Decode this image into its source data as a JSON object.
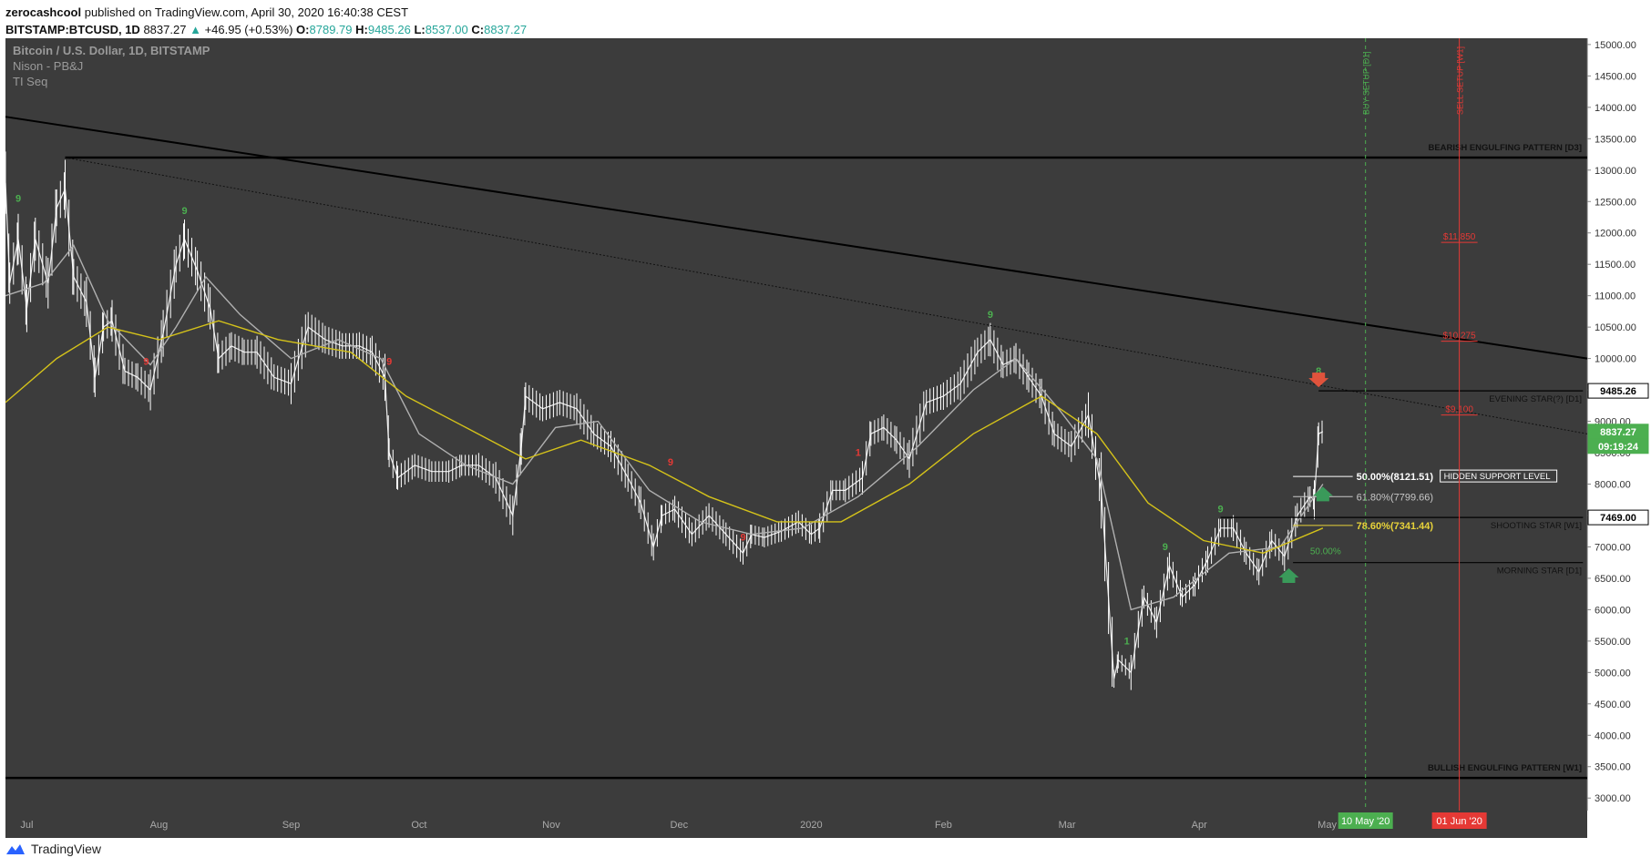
{
  "header": {
    "author": "zerocashcool",
    "published_text": "published on TradingView.com, April 30, 2020 16:40:38 CEST",
    "symbol": "BITSTAMP:BTCUSD, 1D",
    "last": "8837.27",
    "change_arrow": "▲",
    "change": "+46.95 (+0.53%)",
    "o_label": "O:",
    "o": "8789.79",
    "h_label": "H:",
    "h": "9485.26",
    "l_label": "L:",
    "l": "8537.00",
    "c_label": "C:",
    "c": "8837.27"
  },
  "legend": {
    "title": "Bitcoin / U.S. Dollar, 1D, BITSTAMP",
    "indicator1": "Nison - PB&J",
    "indicator2": "TI Seq"
  },
  "footer": {
    "brand": "TradingView",
    "logo_icon": "tradingview-logo-icon"
  },
  "colors": {
    "background": "#3c3c3c",
    "candle": "#ffffff",
    "ma_fast": "#b0b0b0",
    "ma_slow": "#d4c21a",
    "buy_green": "#4caf50",
    "sell_red": "#e53935",
    "trendline": "#000000"
  },
  "chart_data": {
    "type": "line",
    "ylim": [
      2800,
      15100
    ],
    "yticks": [
      "3000.00",
      "3500.00",
      "4000.00",
      "4500.00",
      "5000.00",
      "5500.00",
      "6000.00",
      "6500.00",
      "7000.00",
      "7500.00",
      "8000.00",
      "8500.00",
      "9000.00",
      "9500.00",
      "10000.00",
      "10500.00",
      "11000.00",
      "11500.00",
      "12000.00",
      "12500.00",
      "13000.00",
      "13500.00",
      "14000.00",
      "14500.00",
      "15000.00"
    ],
    "xticks": [
      {
        "label": "Jul",
        "date": "2019-07-01"
      },
      {
        "label": "Aug",
        "date": "2019-08-01"
      },
      {
        "label": "Sep",
        "date": "2019-09-01"
      },
      {
        "label": "Oct",
        "date": "2019-10-01"
      },
      {
        "label": "Nov",
        "date": "2019-11-01"
      },
      {
        "label": "Dec",
        "date": "2019-12-01"
      },
      {
        "label": "2020",
        "date": "2020-01-01"
      },
      {
        "label": "Feb",
        "date": "2020-02-01"
      },
      {
        "label": "Mar",
        "date": "2020-03-01"
      },
      {
        "label": "Apr",
        "date": "2020-04-01"
      },
      {
        "label": "May",
        "date": "2020-05-01"
      }
    ],
    "x_start": "2019-06-26",
    "x_end": "2020-07-01",
    "price_points": [
      [
        "2019-06-26",
        12800
      ],
      [
        "2019-06-27",
        11200
      ],
      [
        "2019-06-29",
        11900
      ],
      [
        "2019-07-01",
        10800
      ],
      [
        "2019-07-03",
        11900
      ],
      [
        "2019-07-06",
        11200
      ],
      [
        "2019-07-08",
        12400
      ],
      [
        "2019-07-10",
        12700
      ],
      [
        "2019-07-12",
        11300
      ],
      [
        "2019-07-15",
        10900
      ],
      [
        "2019-07-17",
        9700
      ],
      [
        "2019-07-19",
        10500
      ],
      [
        "2019-07-21",
        10600
      ],
      [
        "2019-07-24",
        9800
      ],
      [
        "2019-07-27",
        9700
      ],
      [
        "2019-07-30",
        9500
      ],
      [
        "2019-08-02",
        10400
      ],
      [
        "2019-08-05",
        11500
      ],
      [
        "2019-08-07",
        11900
      ],
      [
        "2019-08-10",
        11400
      ],
      [
        "2019-08-13",
        10800
      ],
      [
        "2019-08-15",
        10000
      ],
      [
        "2019-08-18",
        10200
      ],
      [
        "2019-08-21",
        10100
      ],
      [
        "2019-08-24",
        10100
      ],
      [
        "2019-08-28",
        9700
      ],
      [
        "2019-09-01",
        9600
      ],
      [
        "2019-09-05",
        10500
      ],
      [
        "2019-09-09",
        10300
      ],
      [
        "2019-09-13",
        10200
      ],
      [
        "2019-09-17",
        10200
      ],
      [
        "2019-09-20",
        10100
      ],
      [
        "2019-09-23",
        9700
      ],
      [
        "2019-09-24",
        8500
      ],
      [
        "2019-09-26",
        8100
      ],
      [
        "2019-09-30",
        8300
      ],
      [
        "2019-10-04",
        8200
      ],
      [
        "2019-10-08",
        8200
      ],
      [
        "2019-10-11",
        8300
      ],
      [
        "2019-10-15",
        8300
      ],
      [
        "2019-10-19",
        8100
      ],
      [
        "2019-10-23",
        7500
      ],
      [
        "2019-10-25",
        8600
      ],
      [
        "2019-10-26",
        9400
      ],
      [
        "2019-10-30",
        9200
      ],
      [
        "2019-11-03",
        9300
      ],
      [
        "2019-11-07",
        9200
      ],
      [
        "2019-11-11",
        8800
      ],
      [
        "2019-11-15",
        8600
      ],
      [
        "2019-11-19",
        8100
      ],
      [
        "2019-11-22",
        7700
      ],
      [
        "2019-11-25",
        7000
      ],
      [
        "2019-11-27",
        7500
      ],
      [
        "2019-11-30",
        7600
      ],
      [
        "2019-12-04",
        7200
      ],
      [
        "2019-12-08",
        7500
      ],
      [
        "2019-12-12",
        7200
      ],
      [
        "2019-12-16",
        6900
      ],
      [
        "2019-12-18",
        7200
      ],
      [
        "2019-12-21",
        7150
      ],
      [
        "2019-12-25",
        7250
      ],
      [
        "2019-12-29",
        7400
      ],
      [
        "2020-01-01",
        7200
      ],
      [
        "2020-01-03",
        7300
      ],
      [
        "2020-01-06",
        7900
      ],
      [
        "2020-01-09",
        7900
      ],
      [
        "2020-01-13",
        8100
      ],
      [
        "2020-01-15",
        8800
      ],
      [
        "2020-01-18",
        8900
      ],
      [
        "2020-01-21",
        8700
      ],
      [
        "2020-01-24",
        8400
      ],
      [
        "2020-01-28",
        9300
      ],
      [
        "2020-02-01",
        9400
      ],
      [
        "2020-02-05",
        9600
      ],
      [
        "2020-02-09",
        10100
      ],
      [
        "2020-02-12",
        10300
      ],
      [
        "2020-02-15",
        9900
      ],
      [
        "2020-02-18",
        10000
      ],
      [
        "2020-02-21",
        9700
      ],
      [
        "2020-02-24",
        9400
      ],
      [
        "2020-02-27",
        8800
      ],
      [
        "2020-03-02",
        8600
      ],
      [
        "2020-03-06",
        9100
      ],
      [
        "2020-03-09",
        7900
      ],
      [
        "2020-03-12",
        4900
      ],
      [
        "2020-03-13",
        5200
      ],
      [
        "2020-03-16",
        5000
      ],
      [
        "2020-03-19",
        6200
      ],
      [
        "2020-03-22",
        5800
      ],
      [
        "2020-03-25",
        6700
      ],
      [
        "2020-03-28",
        6200
      ],
      [
        "2020-03-31",
        6400
      ],
      [
        "2020-04-03",
        6800
      ],
      [
        "2020-04-06",
        7300
      ],
      [
        "2020-04-09",
        7300
      ],
      [
        "2020-04-12",
        6900
      ],
      [
        "2020-04-15",
        6600
      ],
      [
        "2020-04-18",
        7100
      ],
      [
        "2020-04-21",
        6850
      ],
      [
        "2020-04-24",
        7500
      ],
      [
        "2020-04-27",
        7800
      ],
      [
        "2020-04-28",
        7750
      ],
      [
        "2020-04-29",
        8800
      ],
      [
        "2020-04-30",
        8837.27
      ]
    ],
    "ma_fast_points": [
      [
        "2019-06-26",
        11000
      ],
      [
        "2019-07-05",
        11200
      ],
      [
        "2019-07-12",
        11800
      ],
      [
        "2019-07-20",
        10600
      ],
      [
        "2019-07-30",
        9900
      ],
      [
        "2019-08-05",
        10500
      ],
      [
        "2019-08-12",
        11300
      ],
      [
        "2019-08-20",
        10700
      ],
      [
        "2019-09-01",
        10000
      ],
      [
        "2019-09-12",
        10300
      ],
      [
        "2019-09-22",
        10000
      ],
      [
        "2019-10-01",
        8800
      ],
      [
        "2019-10-12",
        8300
      ],
      [
        "2019-10-23",
        8000
      ],
      [
        "2019-11-02",
        8900
      ],
      [
        "2019-11-12",
        9000
      ],
      [
        "2019-11-24",
        7900
      ],
      [
        "2019-12-06",
        7400
      ],
      [
        "2019-12-18",
        7200
      ],
      [
        "2019-12-30",
        7300
      ],
      [
        "2020-01-12",
        7800
      ],
      [
        "2020-01-26",
        8600
      ],
      [
        "2020-02-08",
        9500
      ],
      [
        "2020-02-18",
        10000
      ],
      [
        "2020-02-28",
        9200
      ],
      [
        "2020-03-08",
        8400
      ],
      [
        "2020-03-16",
        6000
      ],
      [
        "2020-03-26",
        6200
      ],
      [
        "2020-04-08",
        6900
      ],
      [
        "2020-04-20",
        7000
      ],
      [
        "2020-04-30",
        8000
      ]
    ],
    "ma_slow_points": [
      [
        "2019-06-26",
        9300
      ],
      [
        "2019-07-08",
        10000
      ],
      [
        "2019-07-20",
        10500
      ],
      [
        "2019-08-01",
        10300
      ],
      [
        "2019-08-15",
        10600
      ],
      [
        "2019-08-29",
        10300
      ],
      [
        "2019-09-15",
        10100
      ],
      [
        "2019-09-28",
        9400
      ],
      [
        "2019-10-12",
        8900
      ],
      [
        "2019-10-26",
        8400
      ],
      [
        "2019-11-08",
        8700
      ],
      [
        "2019-11-24",
        8300
      ],
      [
        "2019-12-08",
        7800
      ],
      [
        "2019-12-24",
        7400
      ],
      [
        "2020-01-08",
        7400
      ],
      [
        "2020-01-24",
        8000
      ],
      [
        "2020-02-08",
        8800
      ],
      [
        "2020-02-24",
        9400
      ],
      [
        "2020-03-08",
        8800
      ],
      [
        "2020-03-20",
        7700
      ],
      [
        "2020-04-02",
        7100
      ],
      [
        "2020-04-16",
        6900
      ],
      [
        "2020-04-30",
        7300
      ]
    ],
    "trendlines": [
      {
        "from": [
          "2019-06-26",
          13850
        ],
        "to": [
          "2020-07-01",
          10000
        ],
        "style": "solid"
      },
      {
        "from": [
          "2019-07-10",
          13200
        ],
        "to": [
          "2020-07-01",
          8800
        ],
        "style": "dotted"
      }
    ],
    "levels": [
      {
        "label": "BEARISH ENGULFING PATTERN [D3]",
        "price": 13200,
        "from": "2019-07-10",
        "to": "2020-07-01",
        "color": "#000000"
      },
      {
        "label": "BULLISH ENGULFING PATTERN [W1]",
        "price": 3320,
        "from": "2019-06-26",
        "to": "2020-07-01",
        "color": "#000000"
      },
      {
        "label": "EVENING STAR(?) [D1]",
        "price": 9485.26,
        "from": "2020-04-29",
        "to": "2020-06-30",
        "color": "#000000"
      },
      {
        "label": "SHOOTING STAR [W1]",
        "price": 7469,
        "from": "2020-04-06",
        "to": "2020-06-30",
        "color": "#000000"
      },
      {
        "label": "MORNING STAR [D1]",
        "price": 6750,
        "from": "2020-04-23",
        "to": "2020-06-30",
        "color": "#000000"
      }
    ],
    "fib": [
      {
        "label": "50.00%(8121.51)",
        "price": 8121.51,
        "color": "#ffffff"
      },
      {
        "label": "61.80%(7799.66)",
        "price": 7799.66,
        "color": "#c8c8c8"
      },
      {
        "label": "78.60%(7341.44)",
        "price": 7341.44,
        "color": "#e8d33a"
      }
    ],
    "hidden_support_label": "HIDDEN SUPPORT LEVEL",
    "fib_small_label": "50.00%",
    "sell_targets": [
      {
        "label": "$11,850",
        "price": 11850
      },
      {
        "label": "$10,275",
        "price": 10275
      },
      {
        "label": "$9,100",
        "price": 9100
      }
    ],
    "vlines": [
      {
        "label": "BUY SETUP [D1]",
        "date": "2020-05-10",
        "color": "#4caf50",
        "tag": "10 May '20"
      },
      {
        "label": "SELL SETUP [W1]",
        "date": "2020-06-01",
        "color": "#e53935",
        "tag": "01 Jun '20"
      }
    ],
    "seq_labels": [
      {
        "text": "9",
        "date": "2019-06-29",
        "price": 12500,
        "color": "#4caf50"
      },
      {
        "text": "9",
        "date": "2019-08-07",
        "price": 12300,
        "color": "#4caf50"
      },
      {
        "text": "9",
        "date": "2019-07-29",
        "price": 9900,
        "color": "#e53935"
      },
      {
        "text": "9",
        "date": "2019-09-24",
        "price": 9900,
        "color": "#e53935"
      },
      {
        "text": "9",
        "date": "2019-11-29",
        "price": 8300,
        "color": "#e53935"
      },
      {
        "text": "9",
        "date": "2019-12-16",
        "price": 7100,
        "color": "#e53935"
      },
      {
        "text": "1",
        "date": "2020-01-12",
        "price": 8450,
        "color": "#e53935"
      },
      {
        "text": "9",
        "date": "2020-02-12",
        "price": 10650,
        "color": "#4caf50"
      },
      {
        "text": "1",
        "date": "2020-03-15",
        "price": 5450,
        "color": "#4caf50"
      },
      {
        "text": "9",
        "date": "2020-03-24",
        "price": 6950,
        "color": "#4caf50"
      },
      {
        "text": "9",
        "date": "2020-04-06",
        "price": 7550,
        "color": "#4caf50"
      },
      {
        "text": "8",
        "date": "2020-04-29",
        "price": 9750,
        "color": "#4caf50"
      }
    ],
    "arrows": [
      {
        "type": "down",
        "date": "2020-04-29",
        "price": 9600,
        "color": "#e0533c"
      },
      {
        "type": "up",
        "date": "2020-04-30",
        "price": 7900,
        "color": "#3a9a5a"
      },
      {
        "type": "up",
        "date": "2020-04-22",
        "price": 6600,
        "color": "#3a9a5a"
      }
    ],
    "price_tags": [
      {
        "label": "9485.26",
        "price": 9485.26,
        "bg": "#ffffff",
        "fg": "#000000"
      },
      {
        "label": "8837.27",
        "price": 8837.27,
        "bg": "#4caf50",
        "fg": "#ffffff"
      },
      {
        "label": "09:19:24",
        "price": 8600,
        "bg": "#4caf50",
        "fg": "#ffffff"
      },
      {
        "label": "7469.00",
        "price": 7469,
        "bg": "#ffffff",
        "fg": "#000000"
      }
    ]
  }
}
